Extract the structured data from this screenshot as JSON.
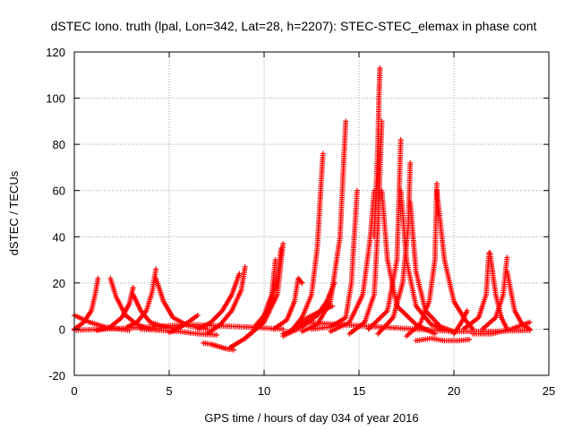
{
  "chart_data": {
    "type": "scatter",
    "title": "dSTEC Iono. truth (lpal, Lon=342, Lat=28, h=2207): STEC-STEC_elemax in phase cont",
    "xlabel": "GPS time / hours of day 034 of year 2016",
    "ylabel": "dSTEC  / TECUs",
    "xlim": [
      0,
      25
    ],
    "ylim": [
      -20,
      120
    ],
    "x_ticks": [
      "0",
      "5",
      "10",
      "15",
      "20",
      "25"
    ],
    "y_ticks": [
      "-20",
      "0",
      "20",
      "40",
      "60",
      "80",
      "100",
      "120"
    ],
    "grid": true,
    "marker": "+",
    "color": "#ff0000",
    "series": [
      {
        "x": [
          0.0,
          0.8,
          1.6,
          2.4,
          2.9
        ],
        "y": [
          6.0,
          3.0,
          1.0,
          0.0,
          -0.5
        ]
      },
      {
        "x": [
          0.0,
          0.5,
          0.9,
          1.1,
          1.25
        ],
        "y": [
          0.0,
          3.0,
          8.0,
          15.0,
          22.0
        ]
      },
      {
        "x": [
          1.9,
          2.2,
          2.7,
          3.3,
          4.0
        ],
        "y": [
          22.0,
          14.0,
          6.0,
          2.0,
          0.0
        ]
      },
      {
        "x": [
          1.2,
          1.9,
          2.5,
          2.9,
          3.1
        ],
        "y": [
          -0.5,
          1.0,
          5.0,
          11.0,
          18.0
        ]
      },
      {
        "x": [
          3.1,
          3.5,
          4.0,
          4.7,
          5.5
        ],
        "y": [
          15.0,
          8.0,
          3.0,
          1.0,
          0.0
        ]
      },
      {
        "x": [
          2.8,
          3.3,
          3.8,
          4.1,
          4.3
        ],
        "y": [
          1.0,
          3.0,
          8.0,
          16.0,
          26.0
        ]
      },
      {
        "x": [
          4.3,
          4.7,
          5.2,
          6.0,
          7.0
        ],
        "y": [
          22.0,
          12.0,
          5.0,
          1.5,
          0.0
        ]
      },
      {
        "x": [
          3.5,
          4.5,
          5.5,
          6.5,
          7.5
        ],
        "y": [
          0.0,
          -0.5,
          -1.0,
          -2.0,
          -2.5
        ]
      },
      {
        "x": [
          5.0,
          5.5,
          6.0,
          6.5
        ],
        "y": [
          -1.5,
          0.5,
          3.0,
          6.0
        ]
      },
      {
        "x": [
          6.8,
          7.2,
          7.6,
          8.0,
          8.4
        ],
        "y": [
          -6.0,
          -6.5,
          -7.5,
          -8.5,
          -9.0
        ]
      },
      {
        "x": [
          6.5,
          7.2,
          7.8,
          8.3,
          8.7
        ],
        "y": [
          0.0,
          3.0,
          8.0,
          15.0,
          24.0
        ]
      },
      {
        "x": [
          7.0,
          7.7,
          8.3,
          8.8,
          9.0
        ],
        "y": [
          -2.0,
          2.0,
          8.0,
          17.0,
          27.0
        ]
      },
      {
        "x": [
          8.2,
          9.0,
          10.0,
          10.7,
          11.0
        ],
        "y": [
          -8.0,
          -4.0,
          3.0,
          15.0,
          37.0
        ]
      },
      {
        "x": [
          9.0,
          9.8,
          10.3,
          10.7,
          10.9
        ],
        "y": [
          -4.0,
          2.0,
          10.0,
          22.0,
          35.0
        ]
      },
      {
        "x": [
          9.5,
          10.0,
          10.4,
          10.6
        ],
        "y": [
          1.0,
          6.0,
          15.0,
          30.0
        ]
      },
      {
        "x": [
          11.0,
          11.6,
          12.3,
          13.0,
          13.6
        ],
        "y": [
          -2.0,
          0.0,
          5.0,
          8.0,
          10.0
        ]
      },
      {
        "x": [
          10.5,
          11.2,
          11.6,
          11.8,
          12.0
        ],
        "y": [
          0.0,
          4.0,
          12.0,
          22.0,
          20.0
        ]
      },
      {
        "x": [
          11.0,
          12.0,
          12.8,
          13.3,
          13.7
        ],
        "y": [
          -3.0,
          1.0,
          6.0,
          12.0,
          20.0
        ]
      },
      {
        "x": [
          11.5,
          12.0,
          12.5,
          12.8,
          13.1
        ],
        "y": [
          0.0,
          5.0,
          15.0,
          35.0,
          76.0
        ]
      },
      {
        "x": [
          12.0,
          12.8,
          13.5,
          14.0,
          14.3
        ],
        "y": [
          -1.0,
          2.0,
          12.0,
          40.0,
          90.0
        ]
      },
      {
        "x": [
          12.5,
          13.5,
          14.3,
          14.6,
          14.9
        ],
        "y": [
          0.0,
          1.0,
          5.0,
          20.0,
          60.0
        ]
      },
      {
        "x": [
          13.5,
          14.5,
          15.2,
          15.6,
          15.8
        ],
        "y": [
          -1.0,
          3.0,
          15.0,
          40.0,
          60.0
        ]
      },
      {
        "x": [
          15.8,
          15.9,
          16.0,
          16.05,
          16.1
        ],
        "y": [
          40.0,
          60.0,
          80.0,
          100.0,
          113.0
        ]
      },
      {
        "x": [
          14.5,
          15.3,
          15.8,
          16.0,
          16.2
        ],
        "y": [
          -2.0,
          3.0,
          15.0,
          45.0,
          90.0
        ]
      },
      {
        "x": [
          16.2,
          16.5,
          17.0,
          18.0,
          19.0
        ],
        "y": [
          60.0,
          30.0,
          10.0,
          2.0,
          -2.0
        ]
      },
      {
        "x": [
          15.5,
          16.5,
          17.0,
          17.2
        ],
        "y": [
          0.0,
          8.0,
          30.0,
          82.0
        ]
      },
      {
        "x": [
          17.2,
          17.5,
          18.0,
          18.8,
          19.5
        ],
        "y": [
          60.0,
          30.0,
          10.0,
          2.0,
          0.0
        ]
      },
      {
        "x": [
          16.0,
          16.8,
          17.3,
          17.6,
          17.7
        ],
        "y": [
          -2.0,
          5.0,
          20.0,
          45.0,
          72.0
        ]
      },
      {
        "x": [
          17.7,
          18.0,
          18.5,
          19.3,
          20.0
        ],
        "y": [
          55.0,
          25.0,
          8.0,
          1.0,
          -1.0
        ]
      },
      {
        "x": [
          17.5,
          18.2,
          18.7,
          19.0,
          19.1
        ],
        "y": [
          -3.0,
          2.0,
          12.0,
          30.0,
          63.0
        ]
      },
      {
        "x": [
          19.1,
          19.5,
          20.0,
          20.6,
          21.0
        ],
        "y": [
          60.0,
          30.0,
          12.0,
          4.0,
          0.0
        ]
      },
      {
        "x": [
          18.0,
          18.8,
          19.5,
          20.2,
          20.8
        ],
        "y": [
          -5.0,
          -4.0,
          -5.0,
          -5.0,
          -4.5
        ]
      },
      {
        "x": [
          20.0,
          20.4,
          20.7
        ],
        "y": [
          -2.0,
          3.0,
          8.0
        ]
      },
      {
        "x": [
          20.5,
          21.3,
          21.7,
          21.85
        ],
        "y": [
          0.0,
          5.0,
          15.0,
          33.0
        ]
      },
      {
        "x": [
          21.9,
          22.2,
          22.5,
          22.8
        ],
        "y": [
          33.0,
          15.0,
          5.0,
          0.0
        ]
      },
      {
        "x": [
          21.5,
          22.2,
          22.6,
          22.8
        ],
        "y": [
          0.0,
          5.0,
          15.0,
          31.0
        ]
      },
      {
        "x": [
          22.8,
          23.2,
          23.6,
          24.0
        ],
        "y": [
          25.0,
          8.0,
          2.0,
          0.0
        ]
      },
      {
        "x": [
          21.0,
          22.0,
          23.0,
          24.0
        ],
        "y": [
          -2.0,
          -2.0,
          0.0,
          3.0
        ]
      },
      {
        "x": [
          12.0,
          14.0,
          16.0,
          18.0,
          20.0,
          22.0,
          24.0
        ],
        "y": [
          3.0,
          2.0,
          1.0,
          0.0,
          -1.0,
          -1.0,
          -0.5
        ]
      },
      {
        "x": [
          0.0,
          3.0,
          6.0,
          9.0,
          11.0
        ],
        "y": [
          -0.5,
          0.5,
          2.0,
          1.0,
          0.0
        ]
      }
    ]
  }
}
